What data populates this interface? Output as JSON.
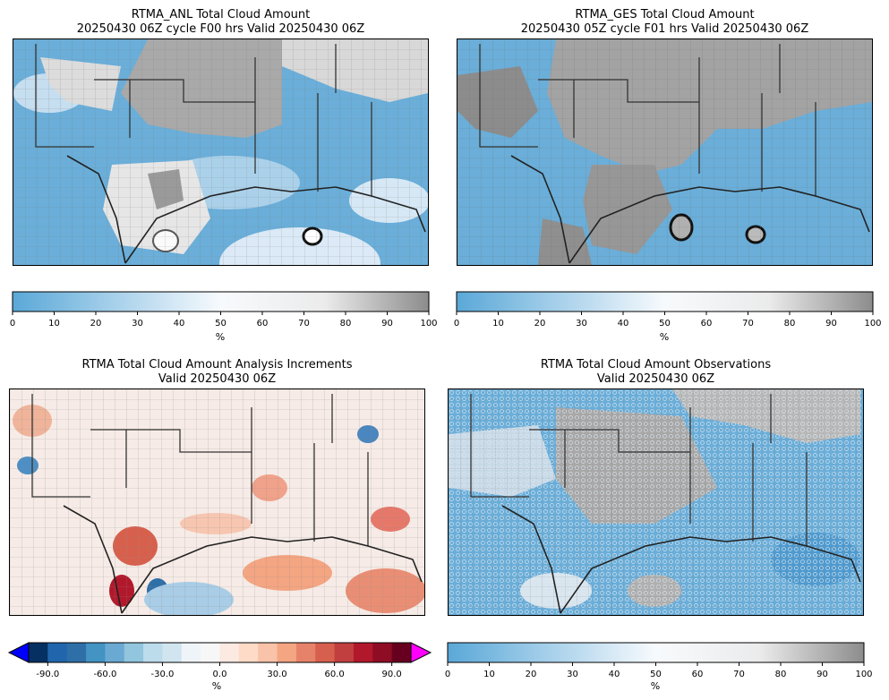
{
  "panels": [
    {
      "title_line1": "RTMA_ANL Total Cloud Amount",
      "title_line2": "20250430 06Z cycle F00 hrs Valid 20250430 06Z"
    },
    {
      "title_line1": "RTMA_GES Total Cloud Amount",
      "title_line2": "20250430 05Z cycle F01 hrs Valid 20250430 06Z"
    },
    {
      "title_line1": "RTMA Total Cloud Amount Analysis Increments",
      "title_line2": "Valid 20250430 06Z"
    },
    {
      "title_line1": "RTMA Total Cloud Amount Observations",
      "title_line2": "Valid 20250430 06Z"
    }
  ],
  "chart_data": [
    {
      "type": "heatmap",
      "title": "RTMA_ANL Total Cloud Amount",
      "colorbar": {
        "ticks": [
          "0",
          "10",
          "20",
          "30",
          "40",
          "50",
          "60",
          "70",
          "80",
          "90",
          "100"
        ],
        "range": [
          0,
          100
        ],
        "unit": "%"
      },
      "colors": {
        "low": "#5aa8d8",
        "mid": "#f7f7f7",
        "high": "#8f8f8f"
      }
    },
    {
      "type": "heatmap",
      "title": "RTMA_GES Total Cloud Amount",
      "colorbar": {
        "ticks": [
          "0",
          "10",
          "20",
          "30",
          "40",
          "50",
          "60",
          "70",
          "80",
          "90",
          "100"
        ],
        "range": [
          0,
          100
        ],
        "unit": "%"
      },
      "colors": {
        "low": "#5aa8d8",
        "mid": "#f7f7f7",
        "high": "#8f8f8f"
      }
    },
    {
      "type": "heatmap",
      "title": "RTMA Total Cloud Amount Analysis Increments",
      "colorbar": {
        "ticks": [
          "-90.0",
          "-60.0",
          "-30.0",
          "0.0",
          "30.0",
          "60.0",
          "90.0"
        ],
        "range": [
          -100,
          100
        ],
        "unit": "%",
        "extend": "both"
      },
      "colors": {
        "under": "#0000ff",
        "over": "#ff00ff"
      }
    },
    {
      "type": "heatmap",
      "title": "RTMA Total Cloud Amount Observations",
      "colorbar": {
        "ticks": [
          "0",
          "10",
          "20",
          "30",
          "40",
          "50",
          "60",
          "70",
          "80",
          "90",
          "100"
        ],
        "range": [
          0,
          100
        ],
        "unit": "%"
      },
      "colors": {
        "low": "#5aa8d8",
        "mid": "#f7f7f7",
        "high": "#8f8f8f"
      }
    }
  ],
  "cloud_colorbar_ticks": [
    "0",
    "10",
    "20",
    "30",
    "40",
    "50",
    "60",
    "70",
    "80",
    "90",
    "100"
  ],
  "incr_colorbar_ticks": [
    "-90.0",
    "-60.0",
    "-30.0",
    "0.0",
    "30.0",
    "60.0",
    "90.0"
  ],
  "unit": "%"
}
